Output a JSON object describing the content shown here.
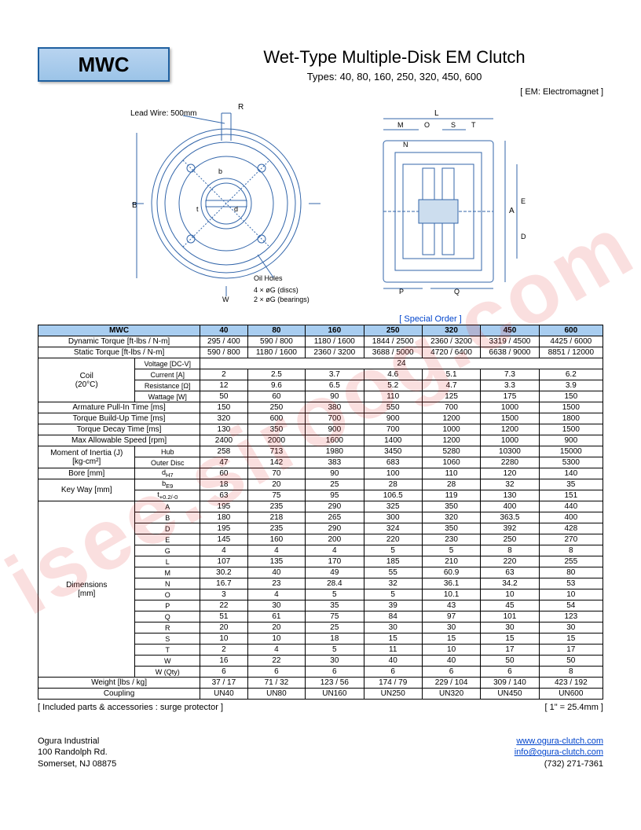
{
  "header": {
    "badge": "MWC",
    "title": "Wet-Type Multiple-Disk EM Clutch",
    "subtitle": "Types: 40, 80, 160, 250, 320, 450, 600",
    "em_note": "[ EM: Electromagnet ]"
  },
  "diagram": {
    "lead_wire": "Lead Wire: 500mm",
    "oil_holes": "Oil Holes",
    "discs": "4 × øG (discs)",
    "bearings": "2 × øG (bearings)",
    "labels_front": [
      "R",
      "b",
      "d",
      "t",
      "B",
      "W"
    ],
    "labels_side": [
      "L",
      "M",
      "O",
      "S",
      "T",
      "N",
      "A",
      "D",
      "E",
      "P",
      "Q"
    ]
  },
  "special_order": "[ Special Order ]",
  "table": {
    "header_colors": {
      "bg": "#a8cdf0"
    },
    "columns": [
      "MWC",
      "40",
      "80",
      "160",
      "250",
      "320",
      "450",
      "600"
    ],
    "rows": [
      {
        "labels": [
          "Dynamic Torque [ft-lbs / N-m]"
        ],
        "span": 2,
        "vals": [
          "295 / 400",
          "590 / 800",
          "1180 / 1600",
          "1844 / 2500",
          "2360 / 3200",
          "3319 / 4500",
          "4425 / 6000"
        ]
      },
      {
        "labels": [
          "Static Torque [ft-lbs / N-m]"
        ],
        "span": 2,
        "vals": [
          "590 / 800",
          "1180 / 1600",
          "2360 / 3200",
          "3688 / 5000",
          "4720 / 6400",
          "6638 / 9000",
          "8851 / 12000"
        ]
      },
      {
        "group": "Coil\n(20°C)",
        "grouprows": 4,
        "labels": [
          "Voltage [DC-V]"
        ],
        "vals_merged": "24"
      },
      {
        "labels": [
          "Current [A]"
        ],
        "vals": [
          "2",
          "2.5",
          "3.7",
          "4.6",
          "5.1",
          "7.3",
          "6.2"
        ]
      },
      {
        "labels": [
          "Resistance [Ω]"
        ],
        "vals": [
          "12",
          "9.6",
          "6.5",
          "5.2",
          "4.7",
          "3.3",
          "3.9"
        ]
      },
      {
        "labels": [
          "Wattage [W]"
        ],
        "vals": [
          "50",
          "60",
          "90",
          "110",
          "125",
          "175",
          "150"
        ]
      },
      {
        "labels": [
          "Armature Pull-In Time [ms]"
        ],
        "span": 2,
        "vals": [
          "150",
          "250",
          "380",
          "550",
          "700",
          "1000",
          "1500"
        ]
      },
      {
        "labels": [
          "Torque Build-Up Time [ms]"
        ],
        "span": 2,
        "vals": [
          "320",
          "600",
          "700",
          "900",
          "1200",
          "1500",
          "1800"
        ]
      },
      {
        "labels": [
          "Torque Decay Time [ms]"
        ],
        "span": 2,
        "vals": [
          "130",
          "350",
          "900",
          "700",
          "1000",
          "1200",
          "1500"
        ]
      },
      {
        "labels": [
          "Max Allowable Speed [rpm]"
        ],
        "span": 2,
        "vals": [
          "2400",
          "2000",
          "1600",
          "1400",
          "1200",
          "1000",
          "900"
        ]
      },
      {
        "group": "Moment of Inertia (J)\n[kg-cm²]",
        "grouprows": 2,
        "labels": [
          "Hub"
        ],
        "vals": [
          "258",
          "713",
          "1980",
          "3450",
          "5280",
          "10300",
          "15000"
        ]
      },
      {
        "labels": [
          "Outer Disc"
        ],
        "vals": [
          "47",
          "142",
          "383",
          "683",
          "1060",
          "2280",
          "5300"
        ]
      },
      {
        "labels": [
          "Bore [mm]",
          "d<sub>H7</sub>"
        ],
        "span_split": true,
        "vals": [
          "60",
          "70",
          "90",
          "100",
          "110",
          "120",
          "140"
        ]
      },
      {
        "group": "Key Way [mm]",
        "grouprows": 2,
        "labels": [
          "b<sub>E9</sub>"
        ],
        "vals": [
          "18",
          "20",
          "25",
          "28",
          "28",
          "32",
          "35"
        ]
      },
      {
        "labels": [
          "t<sub>+0.2/-0</sub>"
        ],
        "vals": [
          "63",
          "75",
          "95",
          "106.5",
          "119",
          "130",
          "151"
        ]
      },
      {
        "group": "Dimensions\n[mm]",
        "grouprows": 16,
        "labels": [
          "A"
        ],
        "vals": [
          "195",
          "235",
          "290",
          "325",
          "350",
          "400",
          "440"
        ]
      },
      {
        "labels": [
          "B"
        ],
        "vals": [
          "180",
          "218",
          "265",
          "300",
          "320",
          "363.5",
          "400"
        ]
      },
      {
        "labels": [
          "D"
        ],
        "vals": [
          "195",
          "235",
          "290",
          "324",
          "350",
          "392",
          "428"
        ]
      },
      {
        "labels": [
          "E"
        ],
        "vals": [
          "145",
          "160",
          "200",
          "220",
          "230",
          "250",
          "270"
        ]
      },
      {
        "labels": [
          "G"
        ],
        "vals": [
          "4",
          "4",
          "4",
          "5",
          "5",
          "8",
          "8"
        ]
      },
      {
        "labels": [
          "L"
        ],
        "vals": [
          "107",
          "135",
          "170",
          "185",
          "210",
          "220",
          "255"
        ]
      },
      {
        "labels": [
          "M"
        ],
        "vals": [
          "30.2",
          "40",
          "49",
          "55",
          "60.9",
          "63",
          "80"
        ]
      },
      {
        "labels": [
          "N"
        ],
        "vals": [
          "16.7",
          "23",
          "28.4",
          "32",
          "36.1",
          "34.2",
          "53"
        ]
      },
      {
        "labels": [
          "O"
        ],
        "vals": [
          "3",
          "4",
          "5",
          "5",
          "10.1",
          "10",
          "10"
        ]
      },
      {
        "labels": [
          "P"
        ],
        "vals": [
          "22",
          "30",
          "35",
          "39",
          "43",
          "45",
          "54"
        ]
      },
      {
        "labels": [
          "Q"
        ],
        "vals": [
          "51",
          "61",
          "75",
          "84",
          "97",
          "101",
          "123"
        ]
      },
      {
        "labels": [
          "R"
        ],
        "vals": [
          "20",
          "20",
          "25",
          "30",
          "30",
          "30",
          "30"
        ]
      },
      {
        "labels": [
          "S"
        ],
        "vals": [
          "10",
          "10",
          "18",
          "15",
          "15",
          "15",
          "15"
        ]
      },
      {
        "labels": [
          "T"
        ],
        "vals": [
          "2",
          "4",
          "5",
          "11",
          "10",
          "17",
          "17"
        ]
      },
      {
        "labels": [
          "W"
        ],
        "vals": [
          "16",
          "22",
          "30",
          "40",
          "40",
          "50",
          "50"
        ]
      },
      {
        "labels": [
          "W (Qty)"
        ],
        "vals": [
          "6",
          "6",
          "6",
          "6",
          "6",
          "6",
          "8"
        ]
      },
      {
        "labels": [
          "Weight [lbs / kg]"
        ],
        "span": 2,
        "vals": [
          "37 / 17",
          "71 / 32",
          "123 / 56",
          "174 / 79",
          "229 / 104",
          "309 / 140",
          "423 / 192"
        ]
      },
      {
        "labels": [
          "Coupling"
        ],
        "span": 2,
        "vals": [
          "UN40",
          "UN80",
          "UN160",
          "UN250",
          "UN320",
          "UN450",
          "UN600"
        ]
      }
    ]
  },
  "footer": {
    "left_note": "[ Included parts & accessories : surge protector ]",
    "right_note": "[ 1\" = 25.4mm ]"
  },
  "contact": {
    "company": "Ogura Industrial",
    "addr1": "100 Randolph Rd.",
    "addr2": "Somerset, NJ 08875",
    "web": "www.ogura-clutch.com",
    "email": "info@ogura-clutch.com",
    "phone": "(732) 271-7361"
  },
  "watermark": "isee.siroog.com"
}
